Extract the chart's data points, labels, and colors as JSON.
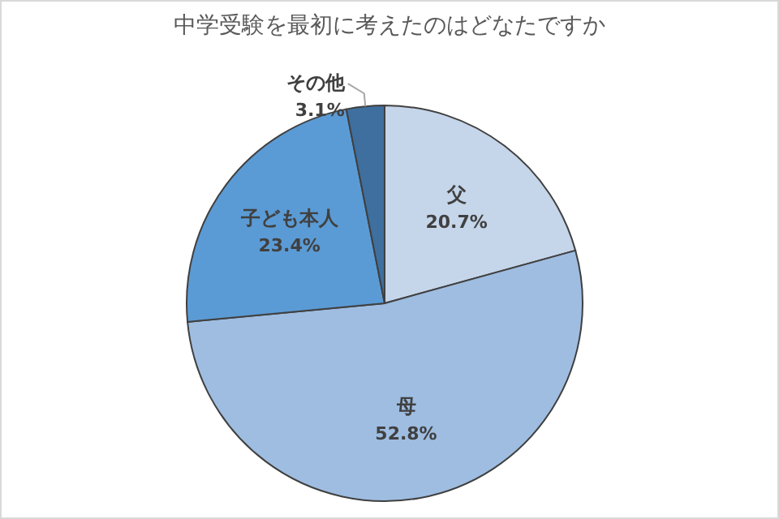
{
  "chart_data": {
    "type": "pie",
    "title": "中学受験を最初に考えたのはどなたですか",
    "categories": [
      "父",
      "母",
      "子ども本人",
      "その他"
    ],
    "values": [
      20.7,
      52.8,
      23.4,
      3.1
    ],
    "colors": [
      "#c5d5ea",
      "#9ebde1",
      "#5b9bd5",
      "#3e6f9f"
    ],
    "value_labels": [
      "20.7%",
      "52.8%",
      "23.4%",
      "3.1%"
    ]
  }
}
